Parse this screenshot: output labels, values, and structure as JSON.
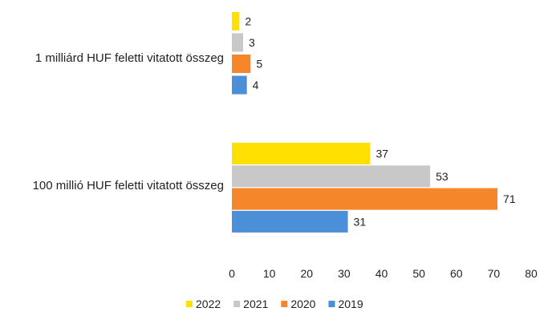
{
  "chart_data": {
    "type": "bar",
    "orientation": "horizontal",
    "categories": [
      "1 milliárd HUF feletti vitatott összeg",
      "100 millió HUF feletti vitatott összeg"
    ],
    "series": [
      {
        "name": "2022",
        "values": [
          2,
          37
        ],
        "color": "#FFE000"
      },
      {
        "name": "2021",
        "values": [
          3,
          53
        ],
        "color": "#C8C8C8"
      },
      {
        "name": "2020",
        "values": [
          5,
          71
        ],
        "color": "#F5862A"
      },
      {
        "name": "2019",
        "values": [
          4,
          31
        ],
        "color": "#4A8FD8"
      }
    ],
    "x_ticks": [
      "0",
      "10",
      "20",
      "30",
      "40",
      "50",
      "60",
      "70",
      "80"
    ],
    "xlim": [
      0,
      80
    ],
    "grid": false,
    "legend_position": "bottom",
    "title": "",
    "xlabel": "",
    "ylabel": ""
  }
}
